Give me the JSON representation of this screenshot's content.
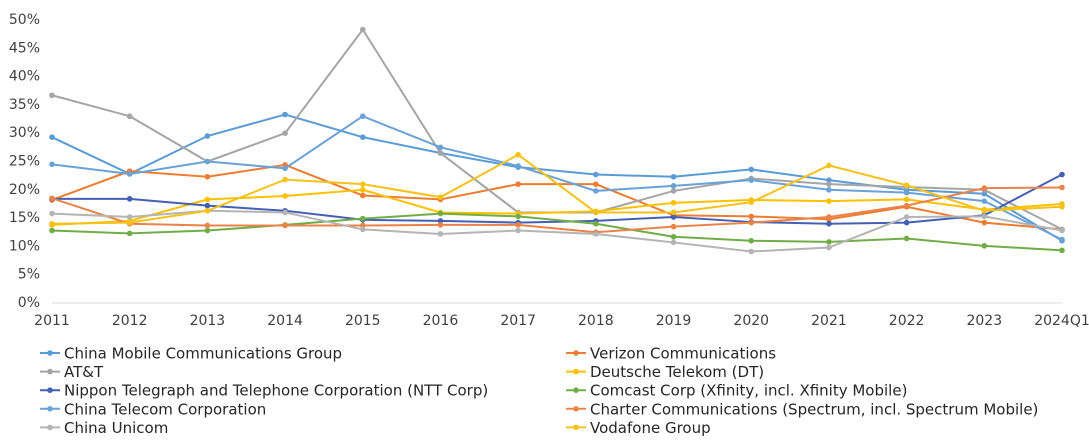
{
  "chart_data": {
    "type": "line",
    "categories": [
      "2011",
      "2012",
      "2013",
      "2014",
      "2015",
      "2016",
      "2017",
      "2018",
      "2019",
      "2020",
      "2021",
      "2022",
      "2023",
      "2024Q1"
    ],
    "ylim": [
      0,
      50
    ],
    "yticks": [
      {
        "value": 0,
        "label": "0%"
      },
      {
        "value": 5,
        "label": "5%"
      },
      {
        "value": 10,
        "label": "10%"
      },
      {
        "value": 15,
        "label": "15%"
      },
      {
        "value": 20,
        "label": "20%"
      },
      {
        "value": 25,
        "label": "25%"
      },
      {
        "value": 30,
        "label": "30%"
      },
      {
        "value": 35,
        "label": "35%"
      },
      {
        "value": 40,
        "label": "40%"
      },
      {
        "value": 45,
        "label": "45%"
      },
      {
        "value": 50,
        "label": "50%"
      }
    ],
    "grid": false,
    "series": [
      {
        "name": "China Mobile Communications Group",
        "color": "#5b9bd5",
        "values": [
          29.3,
          22.8,
          29.5,
          33.3,
          29.3,
          26.5,
          24.0,
          22.7,
          22.3,
          23.6,
          21.7,
          20.0,
          19.3,
          11.0
        ]
      },
      {
        "name": "Verizon Communications",
        "color": "#ed7d31",
        "values": [
          18.2,
          23.3,
          22.3,
          24.4,
          19.0,
          18.3,
          21.0,
          21.0,
          15.5,
          15.3,
          14.8,
          17.0,
          14.2,
          13.0
        ]
      },
      {
        "name": "AT&T",
        "color": "#a5a5a5",
        "values": [
          36.7,
          33.0,
          25.0,
          30.0,
          48.3,
          26.5,
          16.0,
          16.0,
          19.8,
          22.0,
          21.0,
          20.5,
          20.0,
          13.0
        ]
      },
      {
        "name": "Deutsche Telekom (DT)",
        "color": "#ffc000",
        "values": [
          13.8,
          14.5,
          18.3,
          18.9,
          20.0,
          16.0,
          15.8,
          16.2,
          17.7,
          18.2,
          18.0,
          18.3,
          16.5,
          17.5
        ]
      },
      {
        "name": "Nippon Telegraph and Telephone Corporation (NTT Corp)",
        "color": "#4460b4",
        "values": [
          18.4,
          18.4,
          17.2,
          16.3,
          14.7,
          14.5,
          14.2,
          14.5,
          15.2,
          14.3,
          14.0,
          14.2,
          15.5,
          22.7
        ]
      },
      {
        "name": "Comcast Corp (Xfinity, incl. Xfinity Mobile)",
        "color": "#70ad47",
        "values": [
          12.8,
          12.3,
          12.8,
          13.8,
          14.9,
          15.8,
          15.3,
          14.0,
          11.7,
          11.0,
          10.8,
          11.4,
          10.1,
          9.3
        ]
      },
      {
        "name": "China Telecom Corporation",
        "color": "#6aa2d8",
        "values": [
          24.5,
          22.8,
          25.0,
          23.8,
          33.0,
          27.5,
          24.2,
          19.8,
          20.7,
          21.7,
          20.0,
          19.5,
          18.0,
          11.2
        ]
      },
      {
        "name": "Charter Communications (Spectrum, incl. Spectrum Mobile)",
        "color": "#e9834a",
        "values": [
          18.5,
          14.0,
          13.7,
          13.7,
          13.7,
          13.8,
          13.8,
          12.5,
          13.5,
          14.2,
          15.2,
          17.2,
          20.3,
          20.4
        ]
      },
      {
        "name": "China Unicom",
        "color": "#b4b4b4",
        "values": [
          15.8,
          15.2,
          16.3,
          16.0,
          13.0,
          12.2,
          12.8,
          12.2,
          10.7,
          9.1,
          9.8,
          15.2,
          15.3,
          12.8
        ]
      },
      {
        "name": "Vodafone Group",
        "color": "#f5c21b",
        "values": [
          14.0,
          14.2,
          16.3,
          21.8,
          21.0,
          18.7,
          26.2,
          16.0,
          16.0,
          17.8,
          24.3,
          20.8,
          16.3,
          17.0
        ]
      }
    ]
  }
}
